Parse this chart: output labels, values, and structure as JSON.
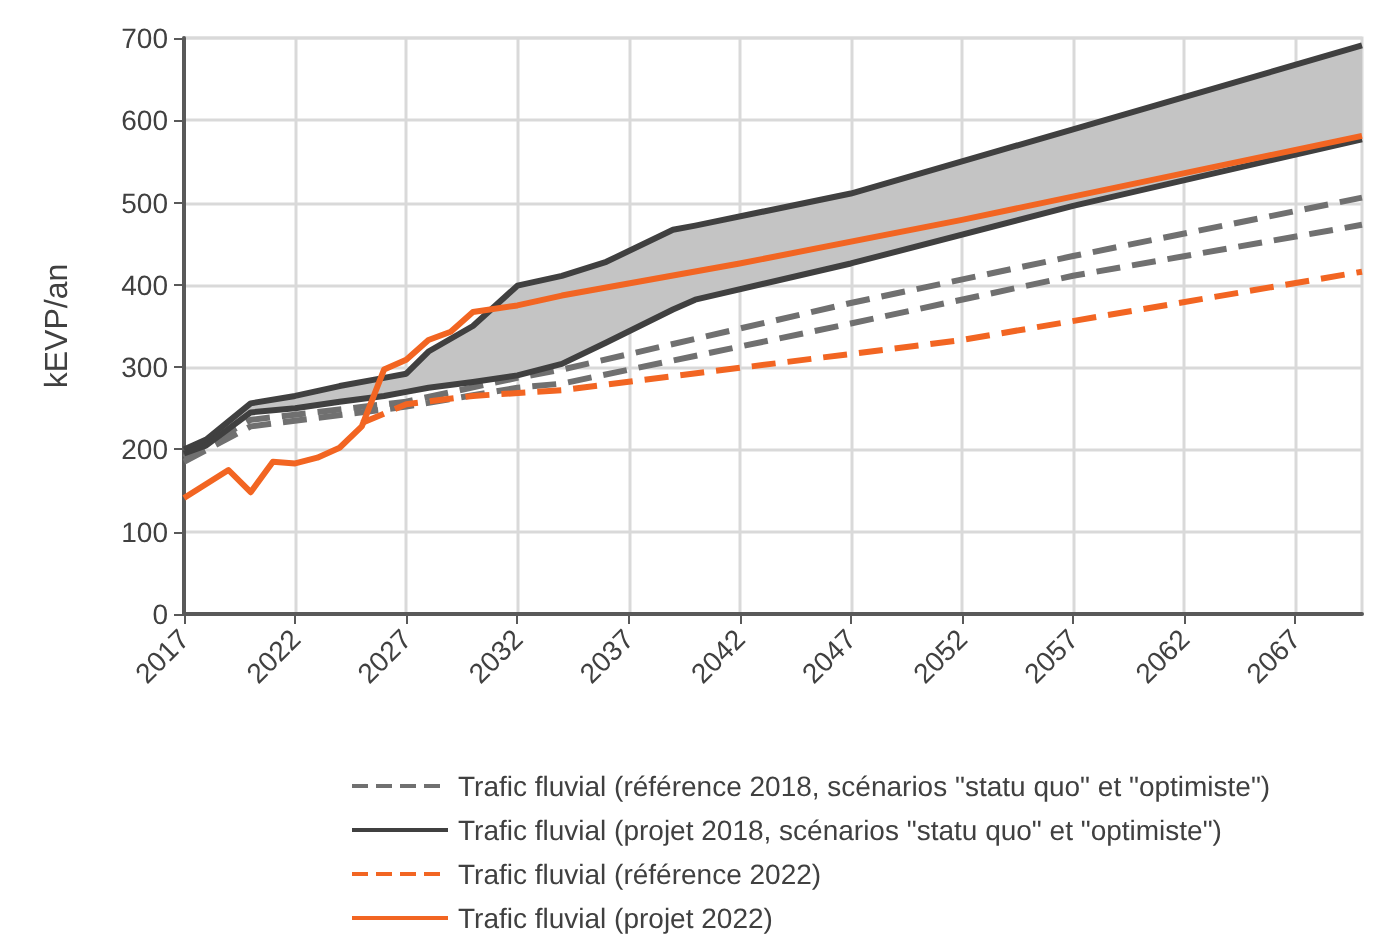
{
  "chart_data": {
    "type": "line",
    "ylabel": "kEVP/an",
    "xlim": [
      2017,
      2070
    ],
    "xticks": [
      2017,
      2022,
      2027,
      2032,
      2037,
      2042,
      2047,
      2052,
      2057,
      2062,
      2067
    ],
    "ylim": [
      0,
      700
    ],
    "yticks": [
      0,
      100,
      200,
      300,
      400,
      500,
      600,
      700
    ],
    "grid": true,
    "legend": "bottom",
    "marker": "none",
    "series": [
      {
        "name": "Trafic fluvial (référence 2018, scénarios \"statu quo\" et \"optimiste\")",
        "color": "#707070",
        "line_style": "dashed",
        "x": [
          2017,
          2020,
          2027,
          2032,
          2034,
          2047,
          2057,
          2070
        ],
        "values": [
          190,
          236,
          258,
          287,
          297,
          378,
          435,
          506
        ]
      },
      {
        "color": "#707070",
        "line_style": "dashed",
        "x": [
          2017,
          2020,
          2027,
          2032,
          2034,
          2047,
          2057,
          2070
        ],
        "values": [
          185,
          228,
          252,
          275,
          280,
          353,
          411,
          473
        ]
      },
      {
        "name": "Trafic fluvial (projet 2018, scénarios \"statu quo\" et \"optimiste\")",
        "color": "#404040",
        "line_style": "solid",
        "x": [
          2017,
          2018,
          2020,
          2022,
          2024,
          2026,
          2027,
          2028,
          2030,
          2032,
          2034,
          2036,
          2039,
          2040,
          2047,
          2057,
          2070
        ],
        "values": [
          200,
          212,
          256,
          265,
          277,
          287,
          292,
          319,
          350,
          399,
          411,
          428,
          467,
          472,
          511,
          589,
          691
        ],
        "lower": [
          195,
          205,
          245,
          250,
          258,
          265,
          270,
          275,
          282,
          290,
          304,
          330,
          370,
          382,
          426,
          496,
          577
        ],
        "upper": [
          200,
          212,
          256,
          265,
          277,
          287,
          292,
          319,
          350,
          399,
          411,
          428,
          467,
          472,
          511,
          589,
          691
        ]
      },
      {
        "color": "#404040",
        "line_style": "solid",
        "x": [
          2017,
          2018,
          2020,
          2022,
          2024,
          2026,
          2027,
          2028,
          2030,
          2032,
          2034,
          2036,
          2039,
          2040,
          2047,
          2057,
          2070
        ],
        "values": [
          195,
          205,
          245,
          250,
          258,
          265,
          270,
          275,
          282,
          290,
          304,
          330,
          370,
          382,
          426,
          496,
          577
        ]
      },
      {
        "name": "Trafic fluvial (référence 2022)",
        "color": "#f26522",
        "line_style": "dashed",
        "x": [
          2025,
          2027,
          2030,
          2034,
          2052,
          2070
        ],
        "values": [
          232,
          255,
          265,
          272,
          333,
          416
        ]
      },
      {
        "name": "Trafic fluvial (projet 2022)",
        "color": "#f26522",
        "line_style": "solid",
        "x": [
          2017,
          2019,
          2020,
          2021,
          2022,
          2023,
          2024,
          2025,
          2026,
          2027,
          2028,
          2029,
          2030,
          2032,
          2034,
          2042,
          2052,
          2061,
          2070
        ],
        "values": [
          141,
          175,
          148,
          185,
          183,
          190,
          202,
          228,
          297,
          309,
          333,
          343,
          367,
          375,
          387,
          426,
          479,
          530,
          581
        ]
      }
    ]
  }
}
